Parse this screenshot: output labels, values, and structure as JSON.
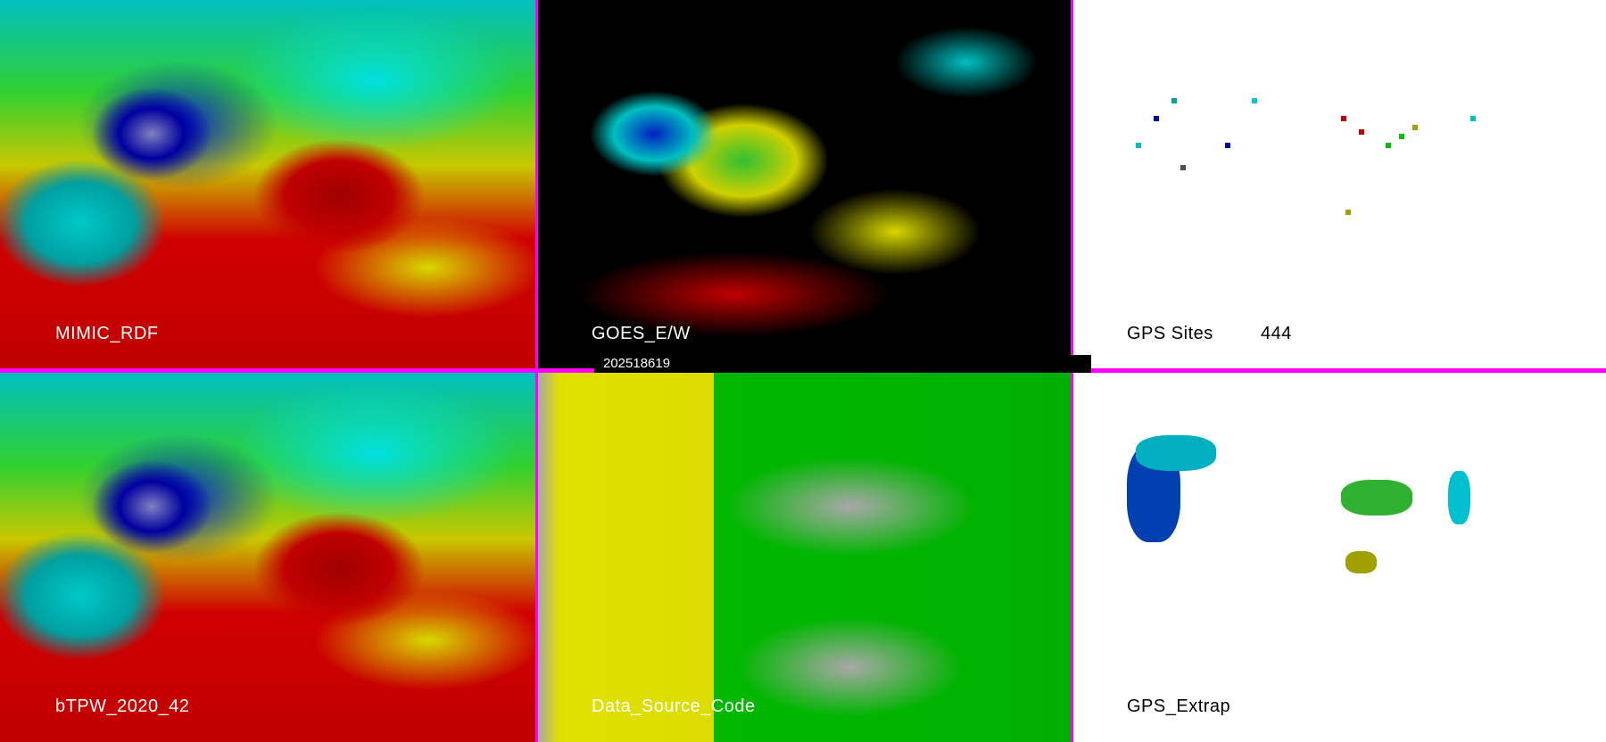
{
  "panels": [
    {
      "id": "mimic",
      "label": "MIMIC_RDF"
    },
    {
      "id": "goes",
      "label": "GOES_E/W"
    },
    {
      "id": "gps_sites",
      "label": "GPS Sites",
      "count": "444"
    },
    {
      "id": "btpw",
      "label": "bTPW_2020_42"
    },
    {
      "id": "dsc",
      "label": "Data_Source_Code"
    },
    {
      "id": "gps_extrap",
      "label": "GPS_Extrap"
    }
  ],
  "timestamp": "202518619",
  "colors": {
    "separator": "#ff00ff",
    "dry": "#0000a0",
    "moist": "#c00000",
    "cyan": "#00d0d0",
    "yellow": "#d8d800",
    "green": "#00b000"
  }
}
